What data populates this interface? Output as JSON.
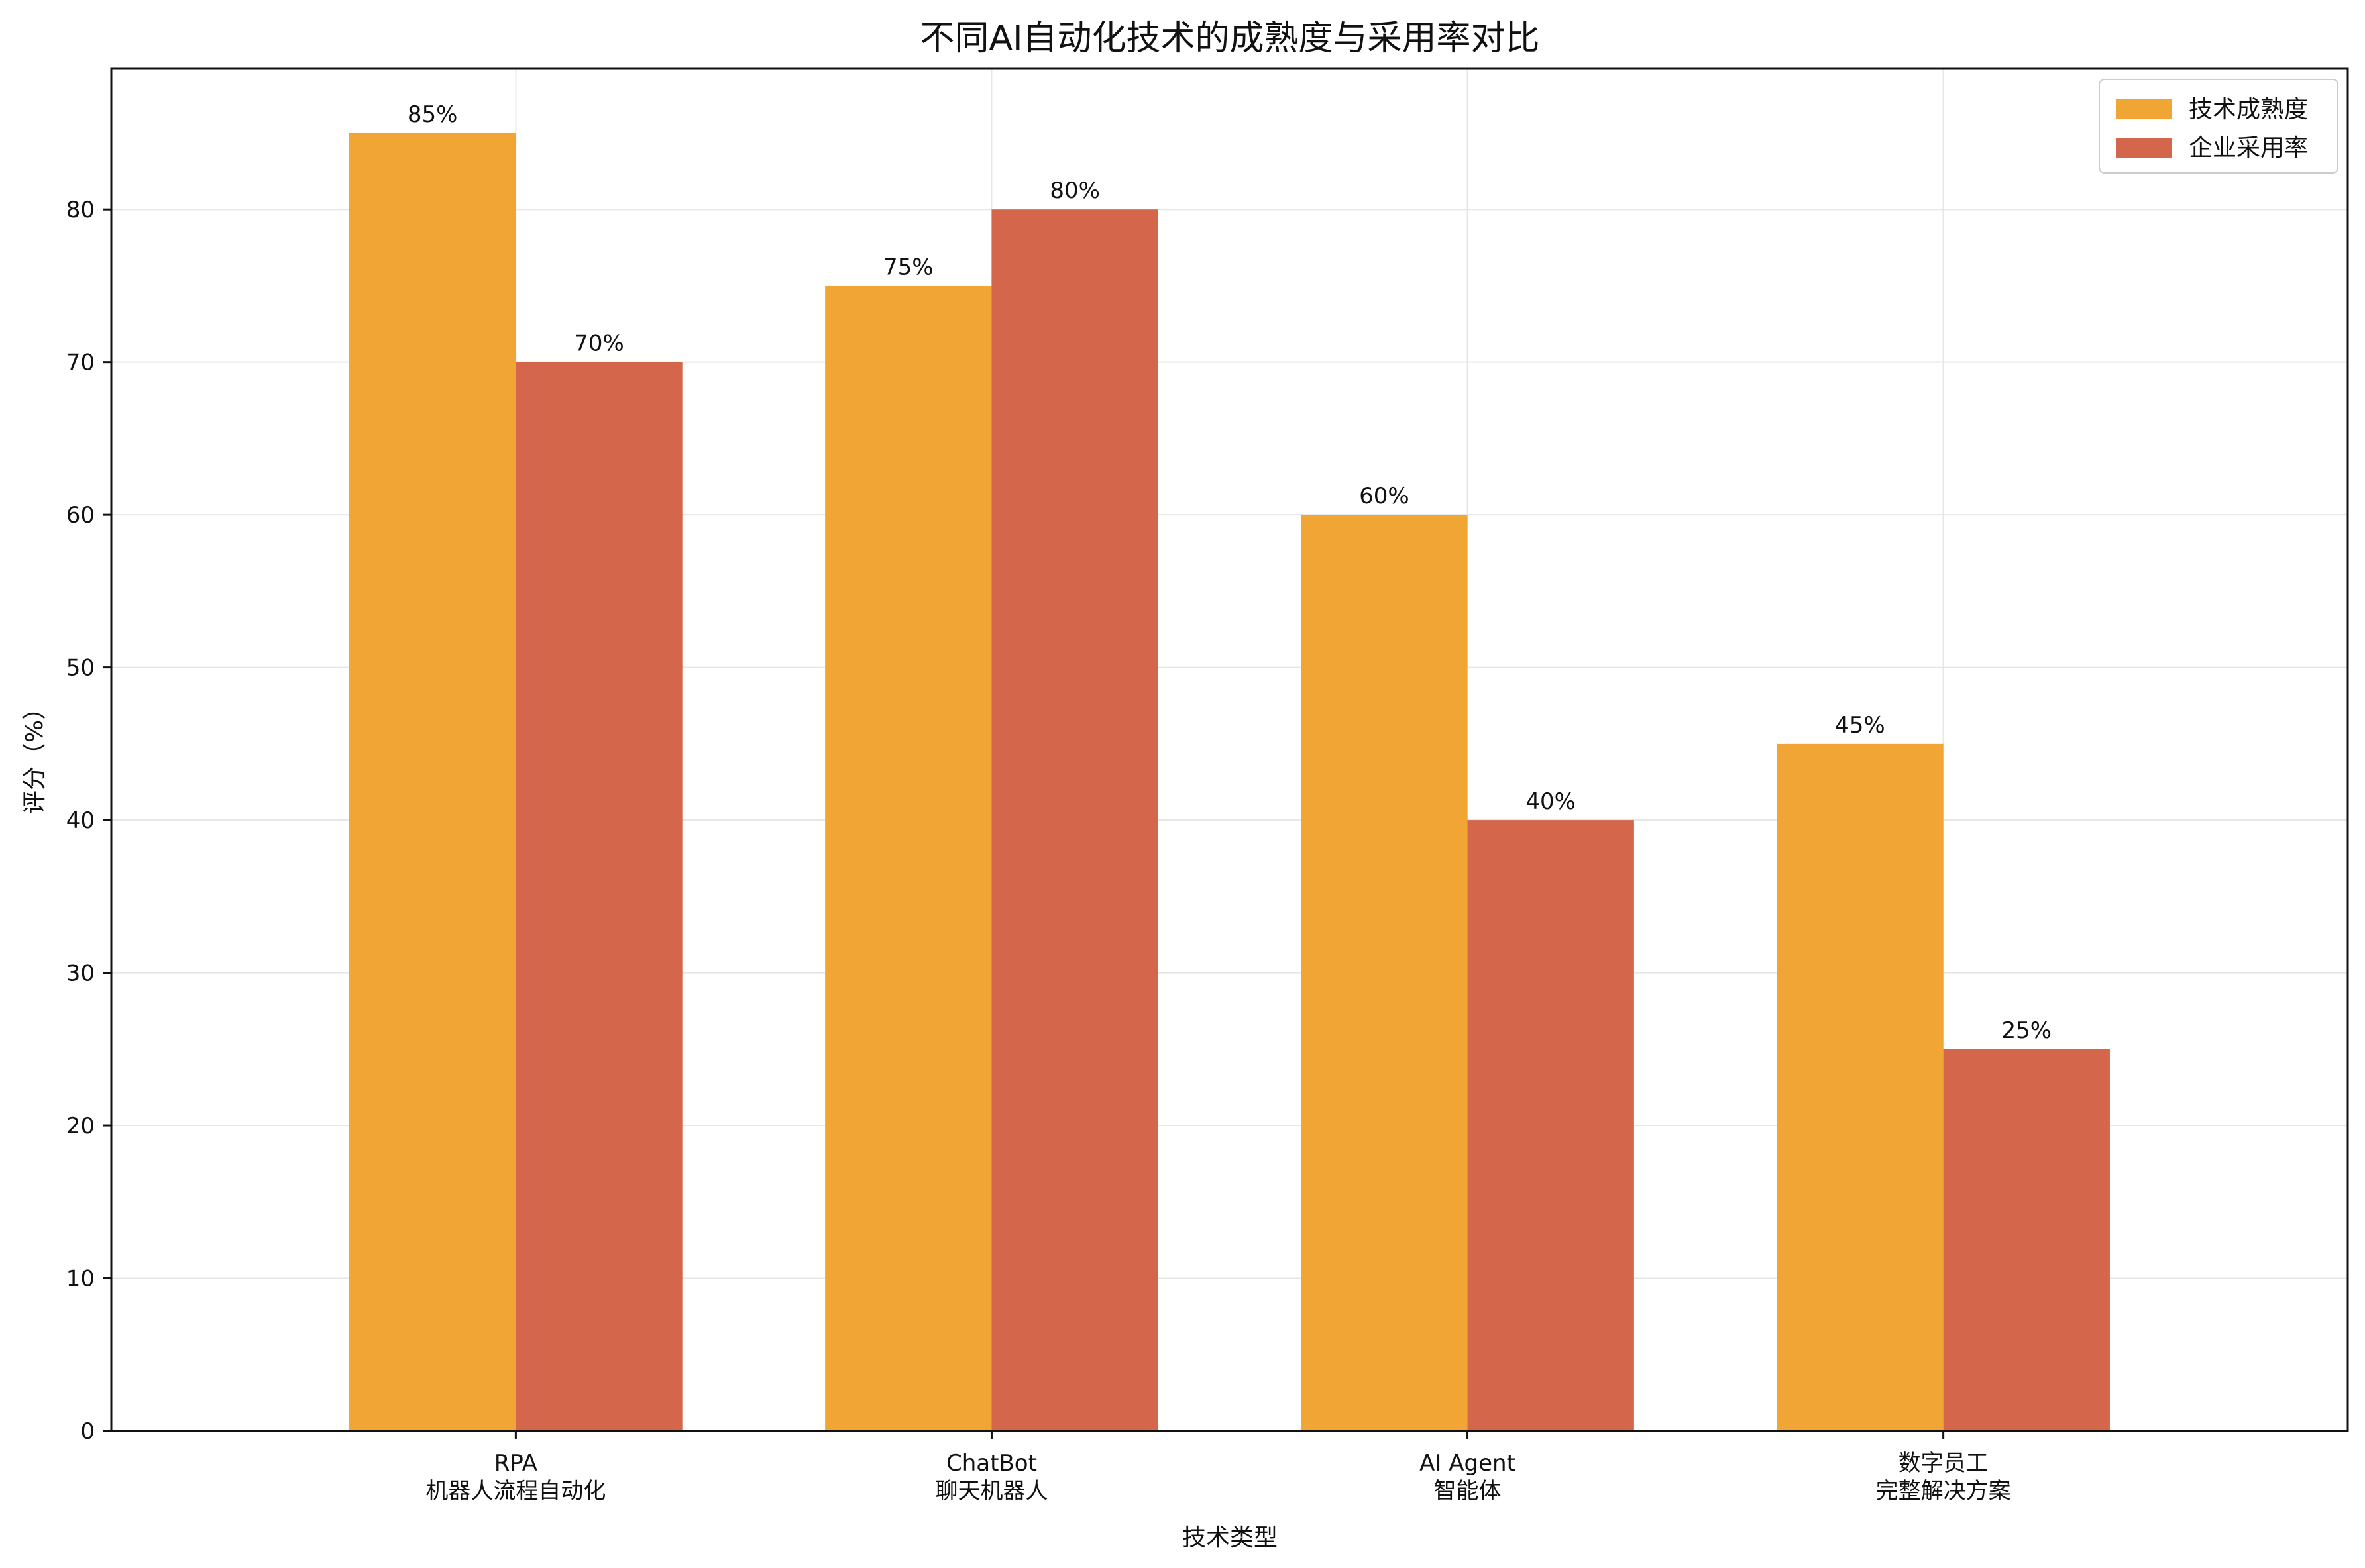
{
  "chart_data": {
    "type": "bar",
    "title": "不同AI自动化技术的成熟度与采用率对比",
    "xlabel": "技术类型",
    "ylabel": "评分（%）",
    "ylim": [
      0,
      89.25
    ],
    "yticks": [
      0,
      10,
      20,
      30,
      40,
      50,
      60,
      70,
      80
    ],
    "grid": true,
    "legend_position": "top-right",
    "categories": [
      [
        "RPA",
        "机器人流程自动化"
      ],
      [
        "ChatBot",
        "聊天机器人"
      ],
      [
        "AI Agent",
        "智能体"
      ],
      [
        "数字员工",
        "完整解决方案"
      ]
    ],
    "series": [
      {
        "name": "技术成熟度",
        "color": "#F0A535",
        "values": [
          85,
          75,
          60,
          45
        ],
        "labels": [
          "85%",
          "75%",
          "60%",
          "45%"
        ]
      },
      {
        "name": "企业采用率",
        "color": "#D4664C",
        "values": [
          70,
          80,
          40,
          25
        ],
        "labels": [
          "70%",
          "80%",
          "40%",
          "25%"
        ]
      }
    ]
  }
}
